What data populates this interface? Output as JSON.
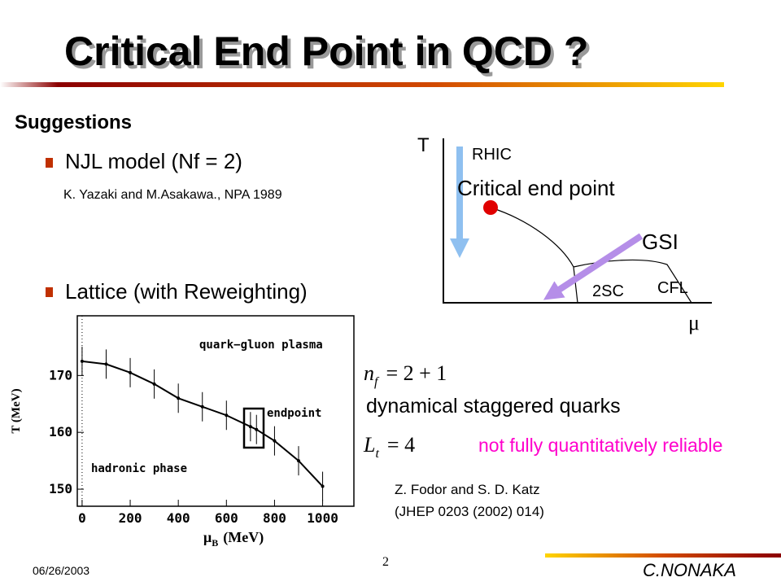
{
  "header": {
    "title": "Critical End Point in QCD ?"
  },
  "left": {
    "heading": "Suggestions",
    "bullets": [
      "NJL model (Nf = 2)",
      "Lattice (with Reweighting)"
    ],
    "reference": "K. Yazaki and M.Asakawa., NPA 1989"
  },
  "phase_diagram": {
    "y_axis": "T",
    "x_axis": "μ",
    "labels": {
      "rhic": "RHIC",
      "endpoint": "Critical end point",
      "gsi": "GSI",
      "sc": "2SC",
      "cfl": "CFL"
    }
  },
  "lattice_plot": {
    "x_label": "μ",
    "x_label_sub": "B",
    "x_label_unit": "(MeV)",
    "y_label": "T (MeV)",
    "regions": [
      "quark−gluon plasma",
      "endpoint",
      "hadronic phase"
    ],
    "xlim": [
      -20,
      1130
    ],
    "ylim": [
      147,
      180.5
    ],
    "xticks": [
      0,
      200,
      400,
      600,
      800,
      1000
    ],
    "yticks": [
      150,
      160,
      170
    ],
    "x": [
      0,
      100,
      200,
      300,
      400,
      500,
      600,
      700,
      725,
      800,
      900,
      1000
    ],
    "values": [
      172.5,
      172,
      170.5,
      168.5,
      166,
      164.5,
      163,
      161,
      160.5,
      158.5,
      155,
      150.5
    ]
  },
  "notes": {
    "nf_base": "n",
    "nf_sub": "f",
    "nf_rest": "= 2 + 1",
    "quarks": "dynamical staggered quarks",
    "lt_base": "L",
    "lt_sub": "t",
    "lt_rest": "= 4",
    "warning": "not fully quantitatively reliable",
    "authors": "Z. Fodor and S. D. Katz",
    "journal": "(JHEP 0203 (2002) 014)"
  },
  "footer": {
    "date": "06/26/2003",
    "page": "2",
    "author": "C.NONAKA"
  }
}
